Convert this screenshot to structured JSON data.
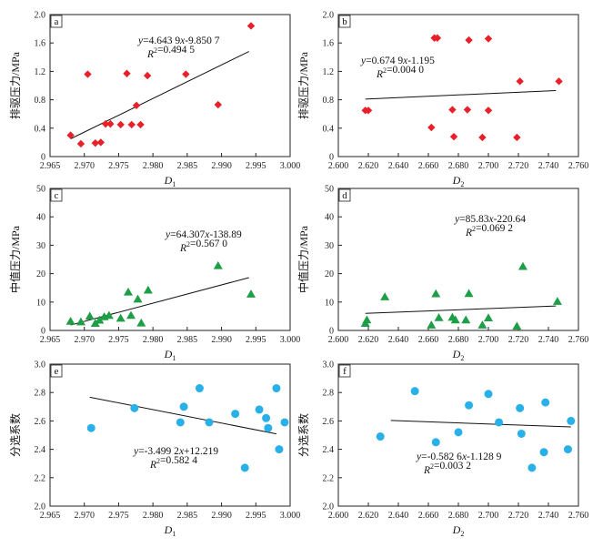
{
  "chart_data": [
    {
      "type": "scatter",
      "panel_label": "a",
      "xlabel": "D₁",
      "ylabel": "排驱压力/MPa",
      "xlim": [
        2.965,
        3.0
      ],
      "ylim": [
        0.0,
        2.0
      ],
      "xticks": [
        "2.965",
        "2.970",
        "2.975",
        "2.980",
        "2.985",
        "2.990",
        "2.995",
        "3.000"
      ],
      "yticks": [
        "0",
        "0.4",
        "0.8",
        "1.2",
        "1.6",
        "2.0"
      ],
      "marker": "diamond",
      "color": "#e8202a",
      "equation": "y=4.643 9x-9.850 7",
      "r2": "R²=0.494 5",
      "trend": {
        "x": [
          2.968,
          2.994
        ],
        "y": [
          0.25,
          1.48
        ]
      },
      "points": [
        [
          2.968,
          0.3
        ],
        [
          2.9695,
          0.18
        ],
        [
          2.9705,
          1.16
        ],
        [
          2.9716,
          0.19
        ],
        [
          2.9724,
          0.2
        ],
        [
          2.9731,
          0.46
        ],
        [
          2.9738,
          0.46
        ],
        [
          2.9753,
          0.45
        ],
        [
          2.9762,
          1.17
        ],
        [
          2.9769,
          0.45
        ],
        [
          2.9776,
          0.72
        ],
        [
          2.9782,
          0.45
        ],
        [
          2.9792,
          1.14
        ],
        [
          2.9848,
          1.16
        ],
        [
          2.9895,
          0.73
        ],
        [
          2.9943,
          1.84
        ]
      ]
    },
    {
      "type": "scatter",
      "panel_label": "b",
      "xlabel": "D₂",
      "ylabel": "排驱压力/MPa",
      "xlim": [
        2.6,
        2.76
      ],
      "ylim": [
        0.0,
        2.0
      ],
      "xticks": [
        "2.600",
        "2.620",
        "2.640",
        "2.660",
        "2.680",
        "2.700",
        "2.720",
        "2.740",
        "2.760"
      ],
      "yticks": [
        "0",
        "0.4",
        "0.8",
        "1.2",
        "1.6",
        "2.0"
      ],
      "marker": "diamond",
      "color": "#e8202a",
      "equation": "y=0.674 9x-1.195",
      "r2": "R²=0.004 0",
      "trend": {
        "x": [
          2.618,
          2.745
        ],
        "y": [
          0.81,
          0.93
        ]
      },
      "points": [
        [
          2.618,
          0.65
        ],
        [
          2.62,
          0.65
        ],
        [
          2.662,
          0.41
        ],
        [
          2.664,
          1.67
        ],
        [
          2.666,
          1.67
        ],
        [
          2.676,
          0.66
        ],
        [
          2.677,
          0.28
        ],
        [
          2.686,
          0.66
        ],
        [
          2.687,
          1.64
        ],
        [
          2.696,
          0.27
        ],
        [
          2.7,
          1.66
        ],
        [
          2.7,
          0.65
        ],
        [
          2.719,
          0.27
        ],
        [
          2.721,
          1.06
        ],
        [
          2.747,
          1.06
        ]
      ]
    },
    {
      "type": "scatter",
      "panel_label": "c",
      "xlabel": "D₁",
      "ylabel": "中值压力/MPa",
      "xlim": [
        2.965,
        3.0
      ],
      "ylim": [
        0,
        50
      ],
      "xticks": [
        "2.965",
        "2.970",
        "2.975",
        "2.980",
        "2.985",
        "2.990",
        "2.995",
        "3.000"
      ],
      "yticks": [
        "0",
        "10",
        "20",
        "30",
        "40",
        "50"
      ],
      "marker": "triangle",
      "color": "#1e9e46",
      "equation": "y=64.307x-138.89",
      "r2": "R²=0.567 0",
      "trend": {
        "x": [
          2.968,
          2.994
        ],
        "y": [
          1.9,
          18.6
        ]
      },
      "points": [
        [
          2.968,
          3.2
        ],
        [
          2.9695,
          3.0
        ],
        [
          2.9708,
          5.0
        ],
        [
          2.9716,
          2.5
        ],
        [
          2.9722,
          3.6
        ],
        [
          2.9729,
          4.8
        ],
        [
          2.9736,
          5.3
        ],
        [
          2.9753,
          4.3
        ],
        [
          2.9764,
          13.5
        ],
        [
          2.9768,
          5.3
        ],
        [
          2.9778,
          11.0
        ],
        [
          2.9783,
          2.6
        ],
        [
          2.9793,
          14.2
        ],
        [
          2.9895,
          22.8
        ],
        [
          2.9943,
          12.8
        ]
      ]
    },
    {
      "type": "scatter",
      "panel_label": "d",
      "xlabel": "D₂",
      "ylabel": "中值压力/MPa",
      "xlim": [
        2.6,
        2.76
      ],
      "ylim": [
        0,
        50
      ],
      "xticks": [
        "2.600",
        "2.620",
        "2.640",
        "2.660",
        "2.680",
        "2.700",
        "2.720",
        "2.740",
        "2.760"
      ],
      "yticks": [
        "0",
        "10",
        "20",
        "30",
        "40",
        "50"
      ],
      "marker": "triangle",
      "color": "#1e9e46",
      "equation": "y=85.83x-220.64",
      "r2": "R²=0.069 2",
      "trend": {
        "x": [
          2.618,
          2.745
        ],
        "y": [
          6.0,
          8.6
        ]
      },
      "points": [
        [
          2.618,
          2.5
        ],
        [
          2.619,
          3.7
        ],
        [
          2.631,
          11.8
        ],
        [
          2.662,
          1.9
        ],
        [
          2.665,
          12.9
        ],
        [
          2.667,
          4.5
        ],
        [
          2.676,
          4.6
        ],
        [
          2.678,
          3.7
        ],
        [
          2.685,
          3.7
        ],
        [
          2.687,
          13.0
        ],
        [
          2.696,
          1.9
        ],
        [
          2.7,
          4.4
        ],
        [
          2.719,
          1.5
        ],
        [
          2.723,
          22.5
        ],
        [
          2.746,
          10.2
        ]
      ]
    },
    {
      "type": "scatter",
      "panel_label": "e",
      "xlabel": "D₁",
      "ylabel": "分选系数",
      "xlim": [
        2.965,
        3.0
      ],
      "ylim": [
        2.0,
        3.0
      ],
      "xticks": [
        "2.965",
        "2.970",
        "2.975",
        "2.980",
        "2.985",
        "2.990",
        "2.995",
        "3.000"
      ],
      "yticks": [
        "2.0",
        "2.2",
        "2.4",
        "2.6",
        "2.8",
        "3.0"
      ],
      "marker": "circle",
      "color": "#2ab0e8",
      "equation": "y=-3.499 2x+12.219",
      "r2": "R²=0.582 4",
      "trend": {
        "x": [
          2.9708,
          2.998
        ],
        "y": [
          2.767,
          2.509
        ]
      },
      "points": [
        [
          2.971,
          2.55
        ],
        [
          2.9773,
          2.69
        ],
        [
          2.984,
          2.59
        ],
        [
          2.9845,
          2.7
        ],
        [
          2.9868,
          2.83
        ],
        [
          2.9882,
          2.59
        ],
        [
          2.992,
          2.65
        ],
        [
          2.9934,
          2.27
        ],
        [
          2.9955,
          2.68
        ],
        [
          2.9965,
          2.62
        ],
        [
          2.9968,
          2.55
        ],
        [
          2.998,
          2.83
        ],
        [
          2.9984,
          2.4
        ],
        [
          2.9992,
          2.59
        ]
      ]
    },
    {
      "type": "scatter",
      "panel_label": "f",
      "xlabel": "D₂",
      "ylabel": "分选系数",
      "xlim": [
        2.6,
        2.76
      ],
      "ylim": [
        2.0,
        3.0
      ],
      "xticks": [
        "2.600",
        "2.620",
        "2.640",
        "2.660",
        "2.680",
        "2.700",
        "2.720",
        "2.740",
        "2.760"
      ],
      "yticks": [
        "2.0",
        "2.2",
        "2.4",
        "2.6",
        "2.8",
        "3.0"
      ],
      "marker": "circle",
      "color": "#2ab0e8",
      "equation": "y=-0.582 6x-1.128 9",
      "r2": "R²=0.003 2",
      "trend": {
        "x": [
          2.635,
          2.755
        ],
        "y": [
          2.603,
          2.558
        ]
      },
      "points": [
        [
          2.628,
          2.49
        ],
        [
          2.651,
          2.81
        ],
        [
          2.665,
          2.45
        ],
        [
          2.68,
          2.52
        ],
        [
          2.687,
          2.71
        ],
        [
          2.7,
          2.79
        ],
        [
          2.707,
          2.59
        ],
        [
          2.721,
          2.69
        ],
        [
          2.722,
          2.51
        ],
        [
          2.729,
          2.27
        ],
        [
          2.737,
          2.38
        ],
        [
          2.738,
          2.73
        ],
        [
          2.753,
          2.4
        ],
        [
          2.755,
          2.6
        ]
      ]
    }
  ]
}
